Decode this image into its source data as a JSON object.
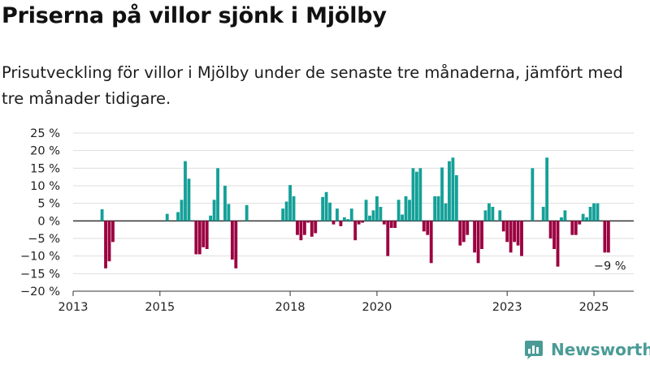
{
  "title": "Priserna på villor sjönk i Mjölby",
  "subtitle": "Prisutveckling för villor i Mjölby under de senaste tre månaderna, jämfört med tre månader tidigare.",
  "logo_text": "Newsworthy",
  "colors": {
    "positive": "#14a098",
    "negative": "#9b0040",
    "grid": "#dddddd",
    "zero_line": "#333333",
    "logo": "#4a9b96"
  },
  "chart_data": {
    "type": "bar",
    "title": "",
    "xlabel": "",
    "ylabel": "",
    "x_range": [
      "2013-01",
      "2025-12"
    ],
    "ylim": [
      -20,
      25
    ],
    "y_ticks": [
      25,
      20,
      15,
      10,
      5,
      0,
      -5,
      -10,
      -15,
      -20
    ],
    "y_tick_labels": [
      "25 %",
      "20 %",
      "15 %",
      "10 %",
      "5 %",
      "0 %",
      "−5 %",
      "−10 %",
      "−15 %",
      "−20 %"
    ],
    "x_ticks": [
      {
        "date": "2013-01",
        "label": "2013"
      },
      {
        "date": "2015-01",
        "label": "2015"
      },
      {
        "date": "2018-01",
        "label": "2018"
      },
      {
        "date": "2020-01",
        "label": "2020"
      },
      {
        "date": "2023-01",
        "label": "2023"
      },
      {
        "date": "2025-01",
        "label": "2025"
      }
    ],
    "grid": "horizontal",
    "annotation": {
      "date": "2025-05",
      "value": -9,
      "label": "−9 %"
    },
    "points": [
      {
        "date": "2013-09",
        "value": 3.3
      },
      {
        "date": "2013-10",
        "value": -13.5
      },
      {
        "date": "2013-11",
        "value": -11.5
      },
      {
        "date": "2013-12",
        "value": -6
      },
      {
        "date": "2015-03",
        "value": 2
      },
      {
        "date": "2015-06",
        "value": 2.5
      },
      {
        "date": "2015-07",
        "value": 6
      },
      {
        "date": "2015-08",
        "value": 17
      },
      {
        "date": "2015-09",
        "value": 12
      },
      {
        "date": "2015-11",
        "value": -9.5
      },
      {
        "date": "2015-12",
        "value": -9.5
      },
      {
        "date": "2016-01",
        "value": -7.5
      },
      {
        "date": "2016-02",
        "value": -8
      },
      {
        "date": "2016-03",
        "value": 1.5
      },
      {
        "date": "2016-04",
        "value": 6
      },
      {
        "date": "2016-05",
        "value": 15
      },
      {
        "date": "2016-07",
        "value": 10
      },
      {
        "date": "2016-08",
        "value": 4.8
      },
      {
        "date": "2016-09",
        "value": -11
      },
      {
        "date": "2016-10",
        "value": -13.5
      },
      {
        "date": "2017-01",
        "value": 4.5
      },
      {
        "date": "2017-11",
        "value": 3.5
      },
      {
        "date": "2017-12",
        "value": 5.5
      },
      {
        "date": "2018-01",
        "value": 10.2
      },
      {
        "date": "2018-02",
        "value": 7
      },
      {
        "date": "2018-03",
        "value": -4
      },
      {
        "date": "2018-04",
        "value": -5.5
      },
      {
        "date": "2018-05",
        "value": -4
      },
      {
        "date": "2018-06",
        "value": -0.5
      },
      {
        "date": "2018-07",
        "value": -4.5
      },
      {
        "date": "2018-08",
        "value": -3.5
      },
      {
        "date": "2018-10",
        "value": 6.8
      },
      {
        "date": "2018-11",
        "value": 8.2
      },
      {
        "date": "2018-12",
        "value": 5.2
      },
      {
        "date": "2019-01",
        "value": -1
      },
      {
        "date": "2019-02",
        "value": 3.5
      },
      {
        "date": "2019-03",
        "value": -1.5
      },
      {
        "date": "2019-04",
        "value": 1
      },
      {
        "date": "2019-05",
        "value": 0.5
      },
      {
        "date": "2019-06",
        "value": 3.5
      },
      {
        "date": "2019-07",
        "value": -5.5
      },
      {
        "date": "2019-08",
        "value": -1
      },
      {
        "date": "2019-09",
        "value": -0.5
      },
      {
        "date": "2019-10",
        "value": 6
      },
      {
        "date": "2019-11",
        "value": 1.5
      },
      {
        "date": "2019-12",
        "value": 3
      },
      {
        "date": "2020-01",
        "value": 7
      },
      {
        "date": "2020-02",
        "value": 4
      },
      {
        "date": "2020-03",
        "value": -1
      },
      {
        "date": "2020-04",
        "value": -10
      },
      {
        "date": "2020-05",
        "value": -2
      },
      {
        "date": "2020-06",
        "value": -2
      },
      {
        "date": "2020-07",
        "value": 6
      },
      {
        "date": "2020-08",
        "value": 1.8
      },
      {
        "date": "2020-09",
        "value": 7
      },
      {
        "date": "2020-10",
        "value": 6
      },
      {
        "date": "2020-11",
        "value": 15
      },
      {
        "date": "2020-12",
        "value": 14
      },
      {
        "date": "2021-01",
        "value": 15
      },
      {
        "date": "2021-02",
        "value": -3
      },
      {
        "date": "2021-03",
        "value": -4
      },
      {
        "date": "2021-04",
        "value": -12
      },
      {
        "date": "2021-05",
        "value": 7
      },
      {
        "date": "2021-06",
        "value": 7
      },
      {
        "date": "2021-07",
        "value": 15.2
      },
      {
        "date": "2021-08",
        "value": 5
      },
      {
        "date": "2021-09",
        "value": 17
      },
      {
        "date": "2021-10",
        "value": 18
      },
      {
        "date": "2021-11",
        "value": 13
      },
      {
        "date": "2021-12",
        "value": -7
      },
      {
        "date": "2022-01",
        "value": -6
      },
      {
        "date": "2022-02",
        "value": -4
      },
      {
        "date": "2022-04",
        "value": -9
      },
      {
        "date": "2022-05",
        "value": -12
      },
      {
        "date": "2022-06",
        "value": -8
      },
      {
        "date": "2022-07",
        "value": 3
      },
      {
        "date": "2022-08",
        "value": 5
      },
      {
        "date": "2022-09",
        "value": 4
      },
      {
        "date": "2022-11",
        "value": 3
      },
      {
        "date": "2022-12",
        "value": -3
      },
      {
        "date": "2023-01",
        "value": -6
      },
      {
        "date": "2023-02",
        "value": -9
      },
      {
        "date": "2023-03",
        "value": -6
      },
      {
        "date": "2023-04",
        "value": -7
      },
      {
        "date": "2023-05",
        "value": -10
      },
      {
        "date": "2023-08",
        "value": 15
      },
      {
        "date": "2023-11",
        "value": 4
      },
      {
        "date": "2023-12",
        "value": 18
      },
      {
        "date": "2024-01",
        "value": -5
      },
      {
        "date": "2024-02",
        "value": -8
      },
      {
        "date": "2024-03",
        "value": -13
      },
      {
        "date": "2024-04",
        "value": 1
      },
      {
        "date": "2024-05",
        "value": 3
      },
      {
        "date": "2024-07",
        "value": -4
      },
      {
        "date": "2024-08",
        "value": -4
      },
      {
        "date": "2024-09",
        "value": -1
      },
      {
        "date": "2024-10",
        "value": 2
      },
      {
        "date": "2024-11",
        "value": 1
      },
      {
        "date": "2024-12",
        "value": 4
      },
      {
        "date": "2025-01",
        "value": 5
      },
      {
        "date": "2025-02",
        "value": 5
      },
      {
        "date": "2025-04",
        "value": -9
      },
      {
        "date": "2025-05",
        "value": -9
      }
    ]
  }
}
